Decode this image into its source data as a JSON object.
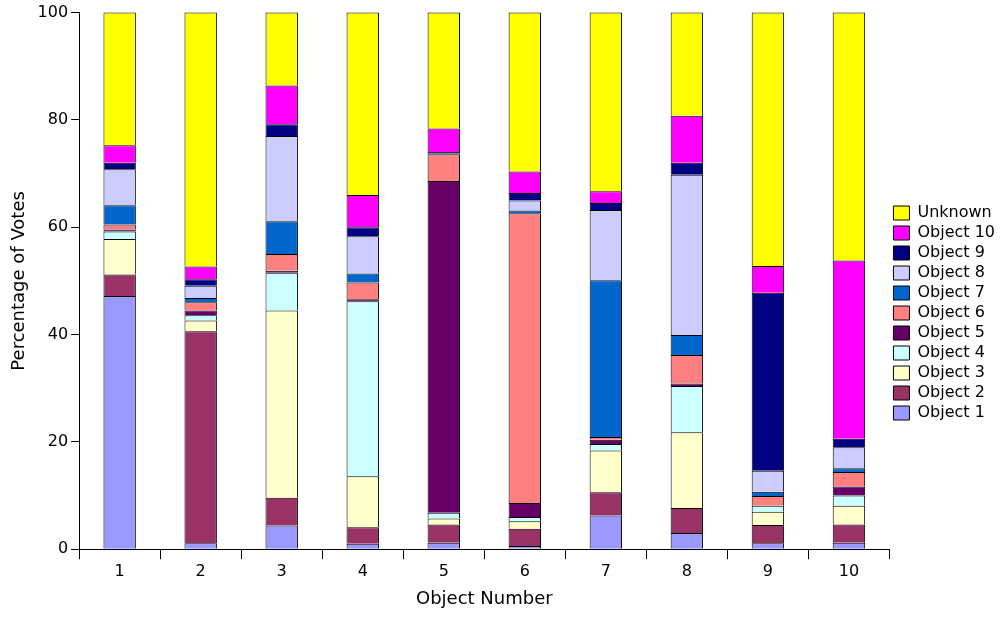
{
  "chart_data": {
    "type": "bar",
    "stacked": true,
    "xlabel": "Object Number",
    "ylabel": "Percentage of Votes",
    "categories": [
      "1",
      "2",
      "3",
      "4",
      "5",
      "6",
      "7",
      "8",
      "9",
      "10"
    ],
    "ylim": [
      0,
      100
    ],
    "yticks": [
      0,
      20,
      40,
      60,
      80,
      100
    ],
    "grid": false,
    "legend": "right",
    "series": [
      {
        "name": "Object 1",
        "color": "#9999ff",
        "values": [
          47.2,
          1.1,
          4.4,
          1.0,
          1.2,
          0.6,
          6.3,
          3.0,
          1.1,
          1.2
        ]
      },
      {
        "name": "Object 2",
        "color": "#993366",
        "values": [
          4.0,
          39.5,
          5.2,
          3.1,
          3.4,
          3.2,
          4.3,
          4.7,
          3.4,
          3.4
        ]
      },
      {
        "name": "Object 3",
        "color": "#ffffcc",
        "values": [
          6.6,
          2.0,
          34.9,
          9.5,
          1.1,
          1.4,
          7.8,
          14.1,
          2.5,
          3.5
        ]
      },
      {
        "name": "Object 4",
        "color": "#ccffff",
        "values": [
          1.4,
          1.0,
          7.0,
          32.6,
          1.1,
          0.8,
          1.2,
          8.6,
          1.1,
          1.9
        ]
      },
      {
        "name": "Object 5",
        "color": "#660066",
        "values": [
          0.4,
          0.9,
          0.4,
          0.4,
          61.8,
          2.6,
          0.8,
          0.5,
          null,
          1.7
        ]
      },
      {
        "name": "Object 6",
        "color": "#ff8080",
        "values": [
          0.9,
          1.5,
          3.1,
          3.1,
          5.0,
          54.0,
          0.5,
          5.3,
          1.8,
          2.7
        ]
      },
      {
        "name": "Object 7",
        "color": "#0066cc",
        "values": [
          3.6,
          0.8,
          6.1,
          1.7,
          0.2,
          0.5,
          29.2,
          3.7,
          0.8,
          0.7
        ]
      },
      {
        "name": "Object 8",
        "color": "#ccccff",
        "values": [
          6.7,
          2.3,
          15.9,
          6.9,
          null,
          1.9,
          13.1,
          29.9,
          3.9,
          3.9
        ]
      },
      {
        "name": "Object 9",
        "color": "#000080",
        "values": [
          1.2,
          1.2,
          2.2,
          1.7,
          0.2,
          1.4,
          1.3,
          2.2,
          33.2,
          1.6
        ]
      },
      {
        "name": "Object 10",
        "color": "#ff00ff",
        "values": [
          3.3,
          2.4,
          7.2,
          6.0,
          4.4,
          4.0,
          2.2,
          8.8,
          5.0,
          33.2
        ]
      },
      {
        "name": "Unknown",
        "color": "#ffff00",
        "values": [
          24.7,
          47.3,
          13.6,
          34.0,
          21.6,
          29.6,
          33.3,
          19.2,
          47.2,
          46.2
        ]
      }
    ]
  }
}
